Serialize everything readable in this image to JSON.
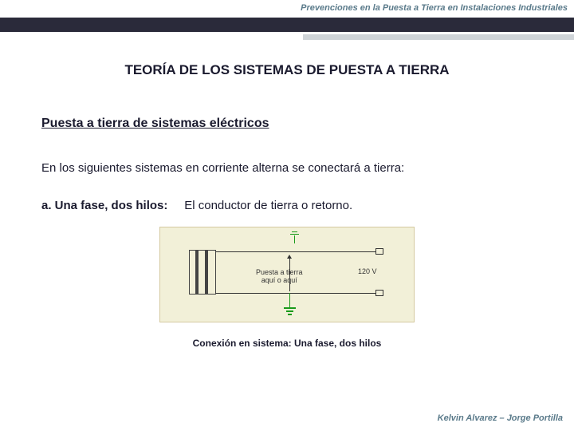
{
  "header": {
    "title": "Prevenciones en la Puesta a Tierra en Instalaciones Industriales"
  },
  "slide": {
    "title": "TEORÍA  DE LOS SISTEMAS DE PUESTA  A TIERRA",
    "subtitle": "Puesta a tierra de sistemas eléctricos",
    "paragraph": "En los siguientes sistemas en corriente alterna se conectará a tierra:",
    "item_label": "a. Una fase, dos hilos:",
    "item_text": "El conductor de tierra o retorno."
  },
  "diagram": {
    "ground_label": "Puesta a tierra",
    "ground_sub": "aquí o aquí",
    "voltage": "120 V",
    "caption": "Conexión en sistema: Una fase, dos hilos"
  },
  "footer": {
    "authors": "Kelvin Alvarez – Jorge Portilla"
  },
  "colors": {
    "dark_bar": "#2a2a3a",
    "gray_bar": "#cfd4d8",
    "diagram_bg": "#f2f0d8",
    "header_text": "#5a7a8a",
    "ground_green": "#1a9a1a"
  }
}
